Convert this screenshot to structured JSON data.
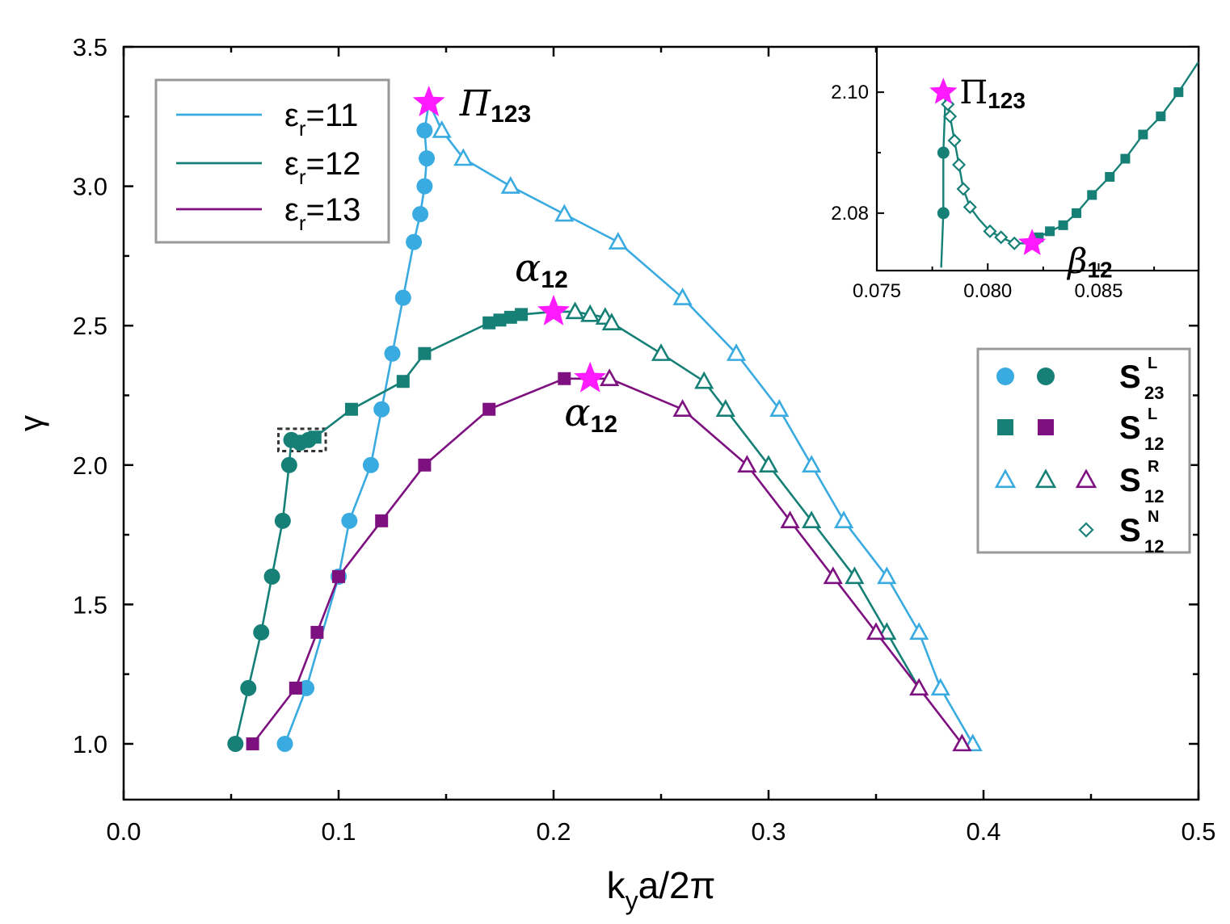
{
  "chart_data": {
    "type": "line",
    "xlabel": {
      "base": "k",
      "sub": "y",
      "rest": "a/2π"
    },
    "ylabel": "γ",
    "xlim": [
      0,
      0.5
    ],
    "ylim": [
      0.8,
      3.5
    ],
    "xticks": [
      "0.0",
      "0.1",
      "0.2",
      "0.3",
      "0.4",
      "0.5"
    ],
    "yticks": [
      "1.0",
      "1.5",
      "2.0",
      "2.5",
      "3.0",
      "3.5"
    ],
    "colors": {
      "e11": "#3aabe0",
      "e12": "#168077",
      "e13": "#7e1180",
      "star": "#ff1aff",
      "dashbox": "#333333"
    },
    "series": [
      {
        "name": "εr=11",
        "legend_base": "ε",
        "legend_sub": "r",
        "legend_val": "=11",
        "color_key": "e11",
        "line": [
          [
            0.075,
            1.0
          ],
          [
            0.085,
            1.2
          ],
          [
            0.1,
            1.6
          ],
          [
            0.105,
            1.8
          ],
          [
            0.115,
            2.0
          ],
          [
            0.12,
            2.2
          ],
          [
            0.125,
            2.4
          ],
          [
            0.13,
            2.6
          ],
          [
            0.135,
            2.8
          ],
          [
            0.138,
            2.9
          ],
          [
            0.14,
            3.0
          ],
          [
            0.141,
            3.1
          ],
          [
            0.14,
            3.2
          ],
          [
            0.142,
            3.3
          ],
          [
            0.148,
            3.2
          ],
          [
            0.158,
            3.1
          ],
          [
            0.18,
            3.0
          ],
          [
            0.205,
            2.9
          ],
          [
            0.23,
            2.8
          ],
          [
            0.26,
            2.6
          ],
          [
            0.285,
            2.4
          ],
          [
            0.305,
            2.2
          ],
          [
            0.32,
            2.0
          ],
          [
            0.335,
            1.8
          ],
          [
            0.355,
            1.6
          ],
          [
            0.37,
            1.4
          ],
          [
            0.38,
            1.2
          ],
          [
            0.395,
            1.0
          ]
        ],
        "circles": [
          [
            0.075,
            1.0
          ],
          [
            0.085,
            1.2
          ],
          [
            0.1,
            1.6
          ],
          [
            0.105,
            1.8
          ],
          [
            0.115,
            2.0
          ],
          [
            0.12,
            2.2
          ],
          [
            0.125,
            2.4
          ],
          [
            0.13,
            2.6
          ],
          [
            0.135,
            2.8
          ],
          [
            0.138,
            2.9
          ],
          [
            0.14,
            3.0
          ],
          [
            0.141,
            3.1
          ],
          [
            0.14,
            3.2
          ]
        ],
        "squares": [],
        "triangles": [
          [
            0.148,
            3.2
          ],
          [
            0.158,
            3.1
          ],
          [
            0.18,
            3.0
          ],
          [
            0.205,
            2.9
          ],
          [
            0.23,
            2.8
          ],
          [
            0.26,
            2.6
          ],
          [
            0.285,
            2.4
          ],
          [
            0.305,
            2.2
          ],
          [
            0.32,
            2.0
          ],
          [
            0.335,
            1.8
          ],
          [
            0.355,
            1.6
          ],
          [
            0.37,
            1.4
          ],
          [
            0.38,
            1.2
          ],
          [
            0.395,
            1.0
          ]
        ]
      },
      {
        "name": "εr=12",
        "legend_base": "ε",
        "legend_sub": "r",
        "legend_val": "=12",
        "color_key": "e12",
        "line": [
          [
            0.052,
            1.0
          ],
          [
            0.058,
            1.2
          ],
          [
            0.064,
            1.4
          ],
          [
            0.069,
            1.6
          ],
          [
            0.074,
            1.8
          ],
          [
            0.077,
            2.0
          ],
          [
            0.078,
            2.09
          ],
          [
            0.082,
            2.08
          ],
          [
            0.086,
            2.09
          ],
          [
            0.089,
            2.1
          ],
          [
            0.106,
            2.2
          ],
          [
            0.13,
            2.3
          ],
          [
            0.14,
            2.4
          ],
          [
            0.17,
            2.51
          ],
          [
            0.175,
            2.52
          ],
          [
            0.18,
            2.53
          ],
          [
            0.185,
            2.54
          ],
          [
            0.2,
            2.55
          ],
          [
            0.21,
            2.55
          ],
          [
            0.217,
            2.54
          ],
          [
            0.224,
            2.53
          ],
          [
            0.227,
            2.51
          ],
          [
            0.25,
            2.4
          ],
          [
            0.27,
            2.3
          ],
          [
            0.28,
            2.2
          ],
          [
            0.3,
            2.0
          ],
          [
            0.32,
            1.8
          ],
          [
            0.34,
            1.6
          ],
          [
            0.355,
            1.4
          ],
          [
            0.37,
            1.2
          ]
        ],
        "circles": [
          [
            0.052,
            1.0
          ],
          [
            0.058,
            1.2
          ],
          [
            0.064,
            1.4
          ],
          [
            0.069,
            1.6
          ],
          [
            0.074,
            1.8
          ],
          [
            0.077,
            2.0
          ],
          [
            0.078,
            2.09
          ],
          [
            0.082,
            2.08
          ],
          [
            0.086,
            2.09
          ]
        ],
        "squares": [
          [
            0.089,
            2.1
          ],
          [
            0.106,
            2.2
          ],
          [
            0.13,
            2.3
          ],
          [
            0.14,
            2.4
          ],
          [
            0.17,
            2.51
          ],
          [
            0.175,
            2.52
          ],
          [
            0.18,
            2.53
          ],
          [
            0.185,
            2.54
          ]
        ],
        "triangles": [
          [
            0.21,
            2.55
          ],
          [
            0.217,
            2.54
          ],
          [
            0.224,
            2.53
          ],
          [
            0.227,
            2.51
          ],
          [
            0.25,
            2.4
          ],
          [
            0.27,
            2.3
          ],
          [
            0.28,
            2.2
          ],
          [
            0.3,
            2.0
          ],
          [
            0.32,
            1.8
          ],
          [
            0.34,
            1.6
          ],
          [
            0.355,
            1.4
          ]
        ]
      },
      {
        "name": "εr=13",
        "legend_base": "ε",
        "legend_sub": "r",
        "legend_val": "=13",
        "color_key": "e13",
        "line": [
          [
            0.06,
            1.0
          ],
          [
            0.08,
            1.2
          ],
          [
            0.09,
            1.4
          ],
          [
            0.1,
            1.6
          ],
          [
            0.12,
            1.8
          ],
          [
            0.14,
            2.0
          ],
          [
            0.17,
            2.2
          ],
          [
            0.205,
            2.31
          ],
          [
            0.215,
            2.31
          ],
          [
            0.226,
            2.31
          ],
          [
            0.26,
            2.2
          ],
          [
            0.29,
            2.0
          ],
          [
            0.31,
            1.8
          ],
          [
            0.33,
            1.6
          ],
          [
            0.35,
            1.4
          ],
          [
            0.37,
            1.2
          ],
          [
            0.39,
            1.0
          ]
        ],
        "circles": [],
        "squares": [
          [
            0.06,
            1.0
          ],
          [
            0.08,
            1.2
          ],
          [
            0.09,
            1.4
          ],
          [
            0.1,
            1.6
          ],
          [
            0.12,
            1.8
          ],
          [
            0.14,
            2.0
          ],
          [
            0.17,
            2.2
          ],
          [
            0.205,
            2.31
          ]
        ],
        "triangles": [
          [
            0.226,
            2.31
          ],
          [
            0.26,
            2.2
          ],
          [
            0.29,
            2.0
          ],
          [
            0.31,
            1.8
          ],
          [
            0.33,
            1.6
          ],
          [
            0.35,
            1.4
          ],
          [
            0.37,
            1.2
          ],
          [
            0.39,
            1.0
          ]
        ]
      }
    ],
    "stars": [
      {
        "x": 0.142,
        "y": 3.3,
        "label_base": "Π",
        "label_sub": "123"
      },
      {
        "x": 0.2,
        "y": 2.55,
        "label_base": "α",
        "label_sub": "12"
      },
      {
        "x": 0.217,
        "y": 2.31,
        "label_base": "α",
        "label_sub": "12"
      }
    ],
    "dashed_box": {
      "x": [
        0.072,
        0.094
      ],
      "y": [
        2.05,
        2.13
      ]
    },
    "symbol_legend": [
      {
        "symbols": [
          "circle-e11",
          "circle-e12"
        ],
        "base": "S",
        "sub": "23",
        "sup": "L"
      },
      {
        "symbols": [
          "square-e12",
          "square-e13"
        ],
        "base": "S",
        "sub": "12",
        "sup": "L"
      },
      {
        "symbols": [
          "tri-e11",
          "tri-e12",
          "tri-e13"
        ],
        "base": "S",
        "sub": "12",
        "sup": "R"
      },
      {
        "symbols": [
          "diamond-e12"
        ],
        "base": "S",
        "sub": "12",
        "sup": "N"
      }
    ],
    "inset": {
      "xlim": [
        0.075,
        0.0895
      ],
      "ylim": [
        2.0705,
        2.1075
      ],
      "xticks": [
        "0.075",
        "0.080",
        "0.085"
      ],
      "yticks": [
        "2.08",
        "2.10"
      ],
      "line_color_key": "e12",
      "line": [
        [
          0.0779,
          2.071
        ],
        [
          0.078,
          2.08
        ],
        [
          0.078,
          2.09
        ],
        [
          0.0781,
          2.1
        ],
        [
          0.0782,
          2.098
        ],
        [
          0.0783,
          2.096
        ],
        [
          0.0785,
          2.092
        ],
        [
          0.0787,
          2.088
        ],
        [
          0.0789,
          2.084
        ],
        [
          0.0792,
          2.081
        ],
        [
          0.0796,
          2.079
        ],
        [
          0.0801,
          2.077
        ],
        [
          0.0806,
          2.076
        ],
        [
          0.0812,
          2.075
        ],
        [
          0.0818,
          2.075
        ],
        [
          0.0823,
          2.076
        ],
        [
          0.0828,
          2.077
        ],
        [
          0.0834,
          2.078
        ],
        [
          0.084,
          2.08
        ],
        [
          0.0847,
          2.083
        ],
        [
          0.0855,
          2.086
        ],
        [
          0.0862,
          2.089
        ],
        [
          0.087,
          2.093
        ],
        [
          0.0878,
          2.096
        ],
        [
          0.0886,
          2.1
        ],
        [
          0.0895,
          2.105
        ]
      ],
      "circles": [
        [
          0.078,
          2.08
        ],
        [
          0.078,
          2.09
        ]
      ],
      "diamonds": [
        [
          0.0782,
          2.098
        ],
        [
          0.0783,
          2.096
        ],
        [
          0.0785,
          2.092
        ],
        [
          0.0787,
          2.088
        ],
        [
          0.0789,
          2.084
        ],
        [
          0.0792,
          2.081
        ],
        [
          0.0801,
          2.077
        ],
        [
          0.0806,
          2.076
        ],
        [
          0.0812,
          2.075
        ]
      ],
      "squares": [
        [
          0.0823,
          2.076
        ],
        [
          0.0828,
          2.077
        ],
        [
          0.0834,
          2.078
        ],
        [
          0.084,
          2.08
        ],
        [
          0.0847,
          2.083
        ],
        [
          0.0855,
          2.086
        ],
        [
          0.0862,
          2.089
        ],
        [
          0.087,
          2.093
        ],
        [
          0.0878,
          2.096
        ],
        [
          0.0886,
          2.1
        ]
      ],
      "stars": [
        {
          "x": 0.078,
          "y": 2.1,
          "label_base": "Π",
          "label_sub": "123"
        },
        {
          "x": 0.082,
          "y": 2.075,
          "label_base": "β",
          "label_sub": "12"
        }
      ]
    }
  }
}
